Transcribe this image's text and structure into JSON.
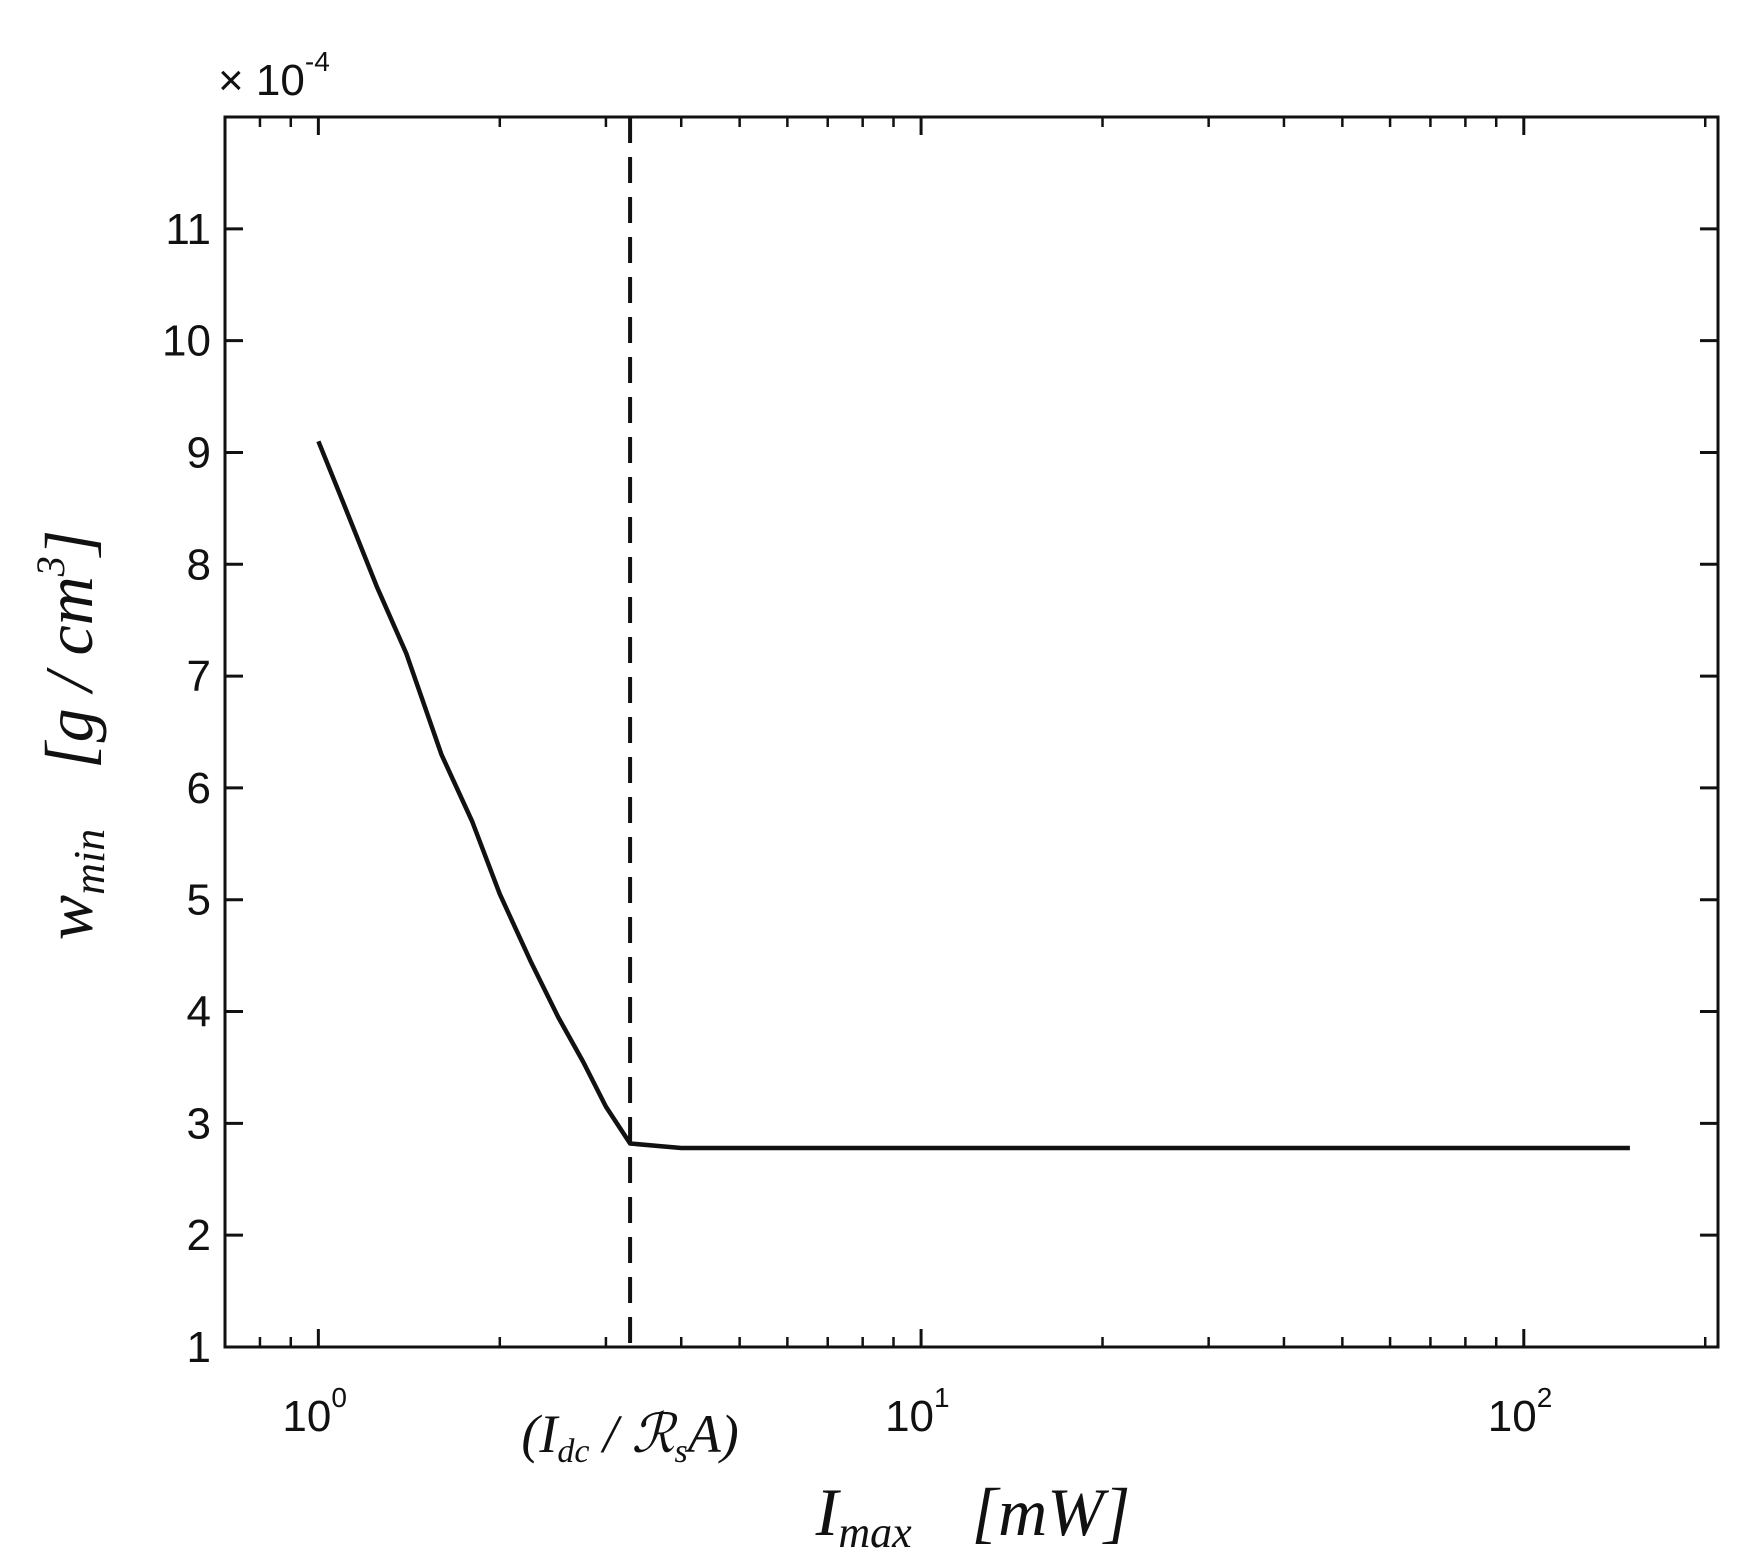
{
  "chart_data": {
    "type": "line",
    "x_scale": "log",
    "xlim": [
      0.7,
      210
    ],
    "ylim": [
      1,
      12
    ],
    "y_multiplier": {
      "prefix": "× 10",
      "exponent": "-4"
    },
    "xlabel": {
      "main": "I",
      "sub": "max",
      "unit": "[mW]"
    },
    "ylabel": {
      "main": "w",
      "sub": "min",
      "unit_base": "[g / cm",
      "unit_exp": "3",
      "unit_close": "]"
    },
    "x_ticks": [
      {
        "value": 1,
        "base": "10",
        "exp": "0"
      },
      {
        "value": 10,
        "base": "10",
        "exp": "1"
      },
      {
        "value": 100,
        "base": "10",
        "exp": "2"
      }
    ],
    "y_ticks": [
      "1",
      "2",
      "3",
      "4",
      "5",
      "6",
      "7",
      "8",
      "9",
      "10",
      "11"
    ],
    "threshold": {
      "x": 3.29,
      "label_open": "(I",
      "label_sub1": "dc",
      "label_mid": " / ℛ",
      "label_sub2": "s",
      "label_close": "A)",
      "style": "dashed"
    },
    "series": [
      {
        "color": "#111111",
        "x": [
          1.0,
          1.1,
          1.25,
          1.4,
          1.6,
          1.8,
          2.0,
          2.25,
          2.5,
          2.75,
          3.0,
          3.29,
          4.0,
          6.0,
          10.0,
          20.0,
          50.0,
          100.0,
          150.0
        ],
        "y": [
          9.1,
          8.55,
          7.8,
          7.2,
          6.3,
          5.7,
          5.05,
          4.45,
          3.95,
          3.55,
          3.15,
          2.82,
          2.78,
          2.78,
          2.78,
          2.78,
          2.78,
          2.78,
          2.78
        ]
      }
    ]
  }
}
